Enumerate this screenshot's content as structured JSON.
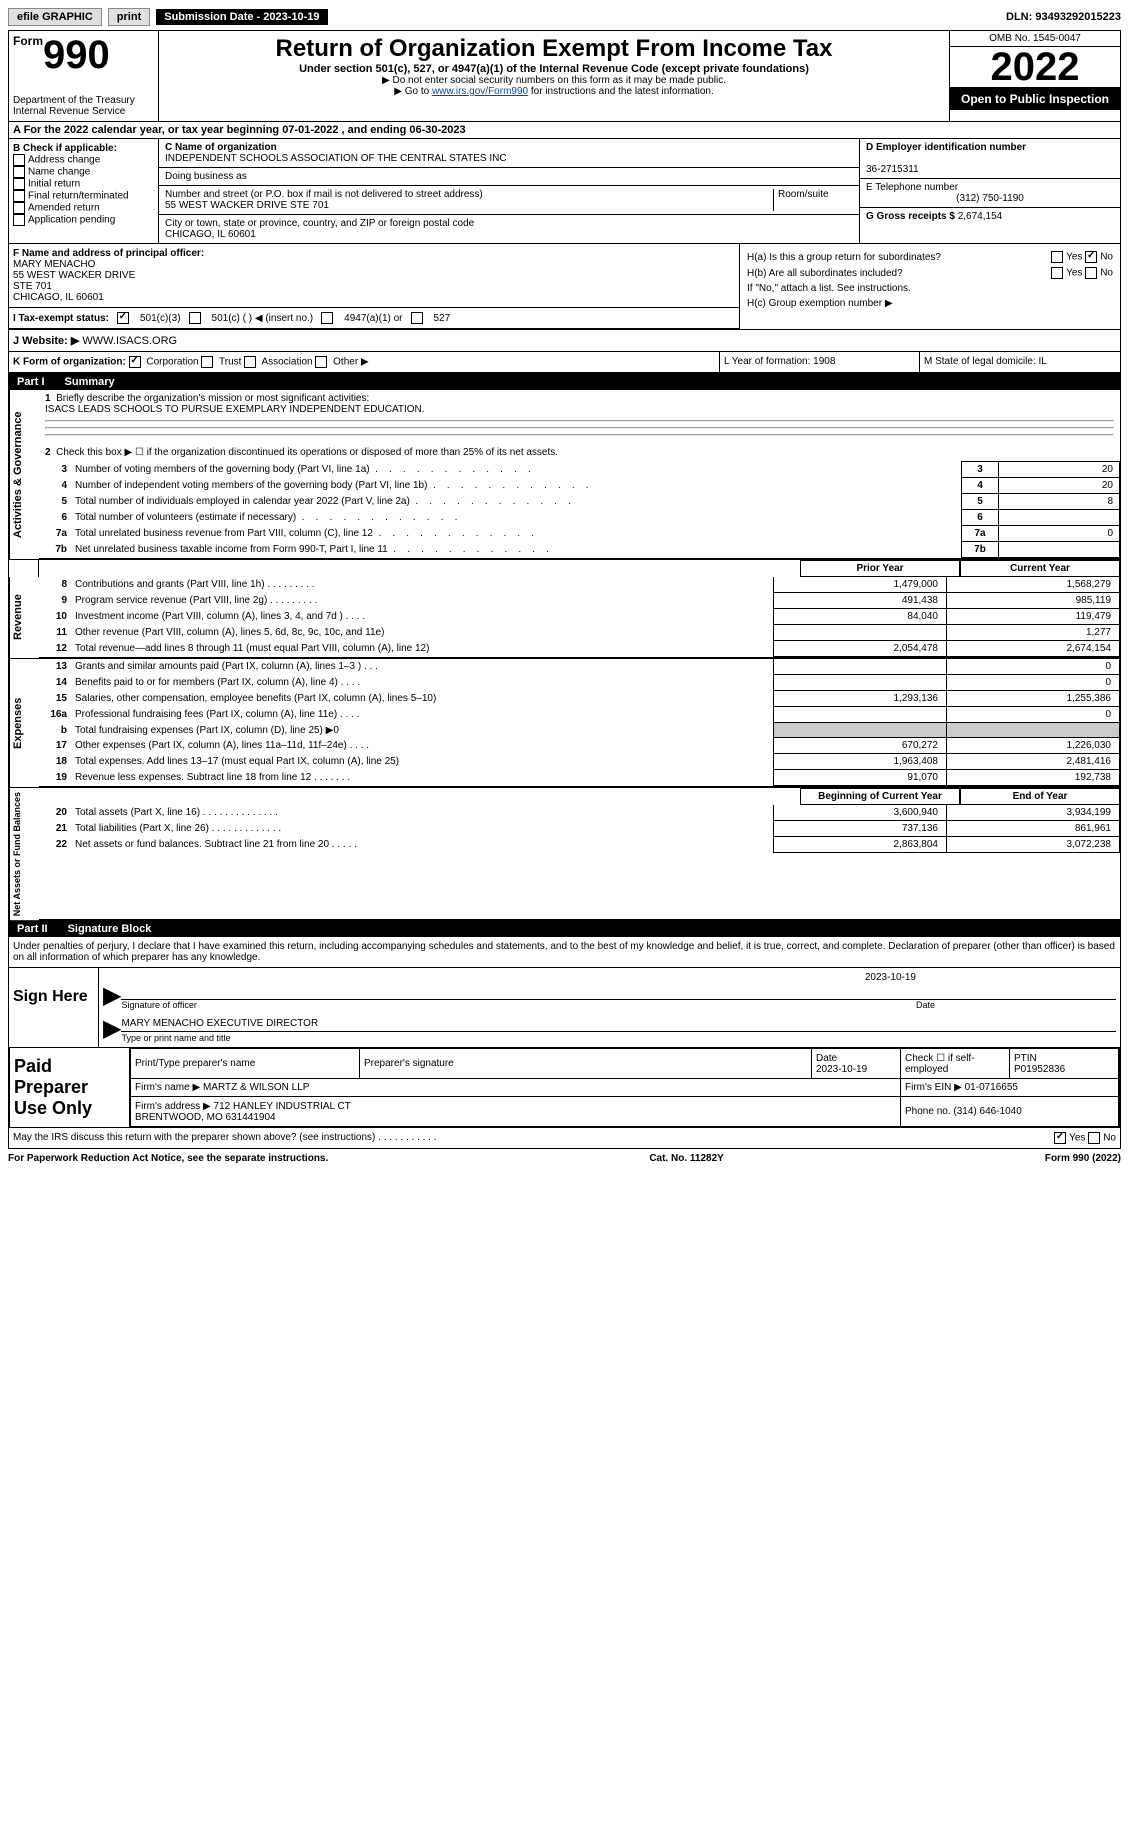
{
  "top": {
    "efile": "efile GRAPHIC",
    "print": "print",
    "sub_date_label": "Submission Date - 2023-10-19",
    "dln": "DLN: 93493292015223"
  },
  "header": {
    "form_prefix": "Form",
    "form_num": "990",
    "dept": "Department of the Treasury\nInternal Revenue Service",
    "title": "Return of Organization Exempt From Income Tax",
    "subtitle": "Under section 501(c), 527, or 4947(a)(1) of the Internal Revenue Code (except private foundations)",
    "note1": "Do not enter social security numbers on this form as it may be made public.",
    "note2_prefix": "Go to ",
    "note2_link": "www.irs.gov/Form990",
    "note2_suffix": " for instructions and the latest information.",
    "omb": "OMB No. 1545-0047",
    "year": "2022",
    "opb": "Open to Public Inspection"
  },
  "row_a": "A For the 2022 calendar year, or tax year beginning 07-01-2022   , and ending 06-30-2023",
  "b": {
    "label": "B Check if applicable:",
    "opts": [
      "Address change",
      "Name change",
      "Initial return",
      "Final return/terminated",
      "Amended return",
      "Application pending"
    ]
  },
  "c": {
    "name_lbl": "C Name of organization",
    "name": "INDEPENDENT SCHOOLS ASSOCIATION OF THE CENTRAL STATES INC",
    "dba_lbl": "Doing business as",
    "addr_lbl": "Number and street (or P.O. box if mail is not delivered to street address)",
    "room_lbl": "Room/suite",
    "addr": "55 WEST WACKER DRIVE STE 701",
    "city_lbl": "City or town, state or province, country, and ZIP or foreign postal code",
    "city": "CHICAGO, IL  60601"
  },
  "d": {
    "ein_lbl": "D Employer identification number",
    "ein": "36-2715311",
    "phone_lbl": "E Telephone number",
    "phone": "(312) 750-1190",
    "gross_lbl": "G Gross receipts $",
    "gross": "2,674,154"
  },
  "f": {
    "lbl": "F  Name and address of principal officer:",
    "name": "MARY MENACHO",
    "addr": "55 WEST WACKER DRIVE\nSTE 701\nCHICAGO, IL  60601"
  },
  "h": {
    "a_lbl": "H(a)  Is this a group return for subordinates?",
    "a_no": true,
    "b_lbl": "H(b)  Are all subordinates included?",
    "b_note": "If \"No,\" attach a list. See instructions.",
    "c_lbl": "H(c)  Group exemption number ▶"
  },
  "i": {
    "lbl": "I   Tax-exempt status:",
    "c3": true,
    "opts": [
      "501(c)(3)",
      "501(c) (  ) ◀ (insert no.)",
      "4947(a)(1) or",
      "527"
    ]
  },
  "j": {
    "lbl": "J   Website: ▶",
    "val": "WWW.ISACS.ORG"
  },
  "k": {
    "lbl": "K Form of organization:",
    "corp": true,
    "opts": [
      "Corporation",
      "Trust",
      "Association",
      "Other ▶"
    ],
    "year_lbl": "L Year of formation: 1908",
    "state_lbl": "M State of legal domicile: IL"
  },
  "part1": {
    "hdr_num": "Part I",
    "hdr_txt": "Summary"
  },
  "gov": {
    "l1_lbl": "Briefly describe the organization's mission or most significant activities:",
    "l1_val": "ISACS LEADS SCHOOLS TO PURSUE EXEMPLARY INDEPENDENT EDUCATION.",
    "l2": "Check this box ▶ ☐ if the organization discontinued its operations or disposed of more than 25% of its net assets.",
    "rows": [
      {
        "n": "3",
        "t": "Number of voting members of the governing body (Part VI, line 1a)",
        "v": "20"
      },
      {
        "n": "4",
        "t": "Number of independent voting members of the governing body (Part VI, line 1b)",
        "v": "20"
      },
      {
        "n": "5",
        "t": "Total number of individuals employed in calendar year 2022 (Part V, line 2a)",
        "v": "8"
      },
      {
        "n": "6",
        "t": "Total number of volunteers (estimate if necessary)",
        "v": ""
      },
      {
        "n": "7a",
        "t": "Total unrelated business revenue from Part VIII, column (C), line 12",
        "v": "0"
      },
      {
        "n": "7b",
        "t": "Net unrelated business taxable income from Form 990-T, Part I, line 11",
        "v": ""
      }
    ]
  },
  "fin_hdr": {
    "prior": "Prior Year",
    "curr": "Current Year"
  },
  "rev": {
    "label": "Revenue",
    "rows": [
      {
        "n": "8",
        "t": "Contributions and grants (Part VIII, line 1h)   .    .    .    .    .    .    .    .    .",
        "p": "1,479,000",
        "c": "1,568,279"
      },
      {
        "n": "9",
        "t": "Program service revenue (Part VIII, line 2g)   .    .    .    .    .    .    .    .    .",
        "p": "491,438",
        "c": "985,119"
      },
      {
        "n": "10",
        "t": "Investment income (Part VIII, column (A), lines 3, 4, and 7d )   .    .    .    .",
        "p": "84,040",
        "c": "119,479"
      },
      {
        "n": "11",
        "t": "Other revenue (Part VIII, column (A), lines 5, 6d, 8c, 9c, 10c, and 11e)",
        "p": "",
        "c": "1,277"
      },
      {
        "n": "12",
        "t": "Total revenue—add lines 8 through 11 (must equal Part VIII, column (A), line 12)",
        "p": "2,054,478",
        "c": "2,674,154"
      }
    ]
  },
  "exp": {
    "label": "Expenses",
    "rows": [
      {
        "n": "13",
        "t": "Grants and similar amounts paid (Part IX, column (A), lines 1–3 )   .    .    .",
        "p": "",
        "c": "0"
      },
      {
        "n": "14",
        "t": "Benefits paid to or for members (Part IX, column (A), line 4)   .    .    .    .",
        "p": "",
        "c": "0"
      },
      {
        "n": "15",
        "t": "Salaries, other compensation, employee benefits (Part IX, column (A), lines 5–10)",
        "p": "1,293,136",
        "c": "1,255,386"
      },
      {
        "n": "16a",
        "t": "Professional fundraising fees (Part IX, column (A), line 11e)   .    .    .    .",
        "p": "",
        "c": "0"
      },
      {
        "n": "b",
        "t": "Total fundraising expenses (Part IX, column (D), line 25) ▶0",
        "p": "grey",
        "c": "grey"
      },
      {
        "n": "17",
        "t": "Other expenses (Part IX, column (A), lines 11a–11d, 11f–24e)   .    .    .    .",
        "p": "670,272",
        "c": "1,226,030"
      },
      {
        "n": "18",
        "t": "Total expenses. Add lines 13–17 (must equal Part IX, column (A), line 25)",
        "p": "1,963,408",
        "c": "2,481,416"
      },
      {
        "n": "19",
        "t": "Revenue less expenses. Subtract line 18 from line 12   .    .    .    .    .    .    .",
        "p": "91,070",
        "c": "192,738"
      }
    ]
  },
  "net": {
    "label": "Net Assets or Fund Balances",
    "hdr_p": "Beginning of Current Year",
    "hdr_c": "End of Year",
    "rows": [
      {
        "n": "20",
        "t": "Total assets (Part X, line 16)   .    .    .    .    .    .    .    .    .    .    .    .    .    .",
        "p": "3,600,940",
        "c": "3,934,199"
      },
      {
        "n": "21",
        "t": "Total liabilities (Part X, line 26)   .    .    .    .    .    .    .    .    .    .    .    .    .",
        "p": "737,136",
        "c": "861,961"
      },
      {
        "n": "22",
        "t": "Net assets or fund balances. Subtract line 21 from line 20   .    .    .    .    .",
        "p": "2,863,804",
        "c": "3,072,238"
      }
    ]
  },
  "part2": {
    "num": "Part II",
    "txt": "Signature Block"
  },
  "sig": {
    "penalties": "Under penalties of perjury, I declare that I have examined this return, including accompanying schedules and statements, and to the best of my knowledge and belief, it is true, correct, and complete. Declaration of preparer (other than officer) is based on all information of which preparer has any knowledge.",
    "sign_here": "Sign Here",
    "sig_officer": "Signature of officer",
    "date": "Date",
    "date_val": "2023-10-19",
    "name": "MARY MENACHO  EXECUTIVE DIRECTOR",
    "name_lbl": "Type or print name and title"
  },
  "prep": {
    "lbl": "Paid Preparer Use Only",
    "name_lbl": "Print/Type preparer's name",
    "sig_lbl": "Preparer's signature",
    "date_lbl": "Date",
    "date_val": "2023-10-19",
    "check_lbl": "Check ☐ if self-employed",
    "ptin_lbl": "PTIN",
    "ptin": "P01952836",
    "firm_name_lbl": "Firm's name   ▶",
    "firm_name": "MARTZ & WILSON LLP",
    "firm_ein_lbl": "Firm's EIN ▶",
    "firm_ein": "01-0716655",
    "firm_addr_lbl": "Firm's address ▶",
    "firm_addr": "712 HANLEY INDUSTRIAL CT\nBRENTWOOD, MO  631441904",
    "phone_lbl": "Phone no.",
    "phone": "(314) 646-1040"
  },
  "discuss": {
    "txt": "May the IRS discuss this return with the preparer shown above? (see instructions)   .    .    .    .    .    .    .    .    .    .    .",
    "yes": true
  },
  "footer": {
    "left": "For Paperwork Reduction Act Notice, see the separate instructions.",
    "mid": "Cat. No. 11282Y",
    "right": "Form 990 (2022)"
  }
}
